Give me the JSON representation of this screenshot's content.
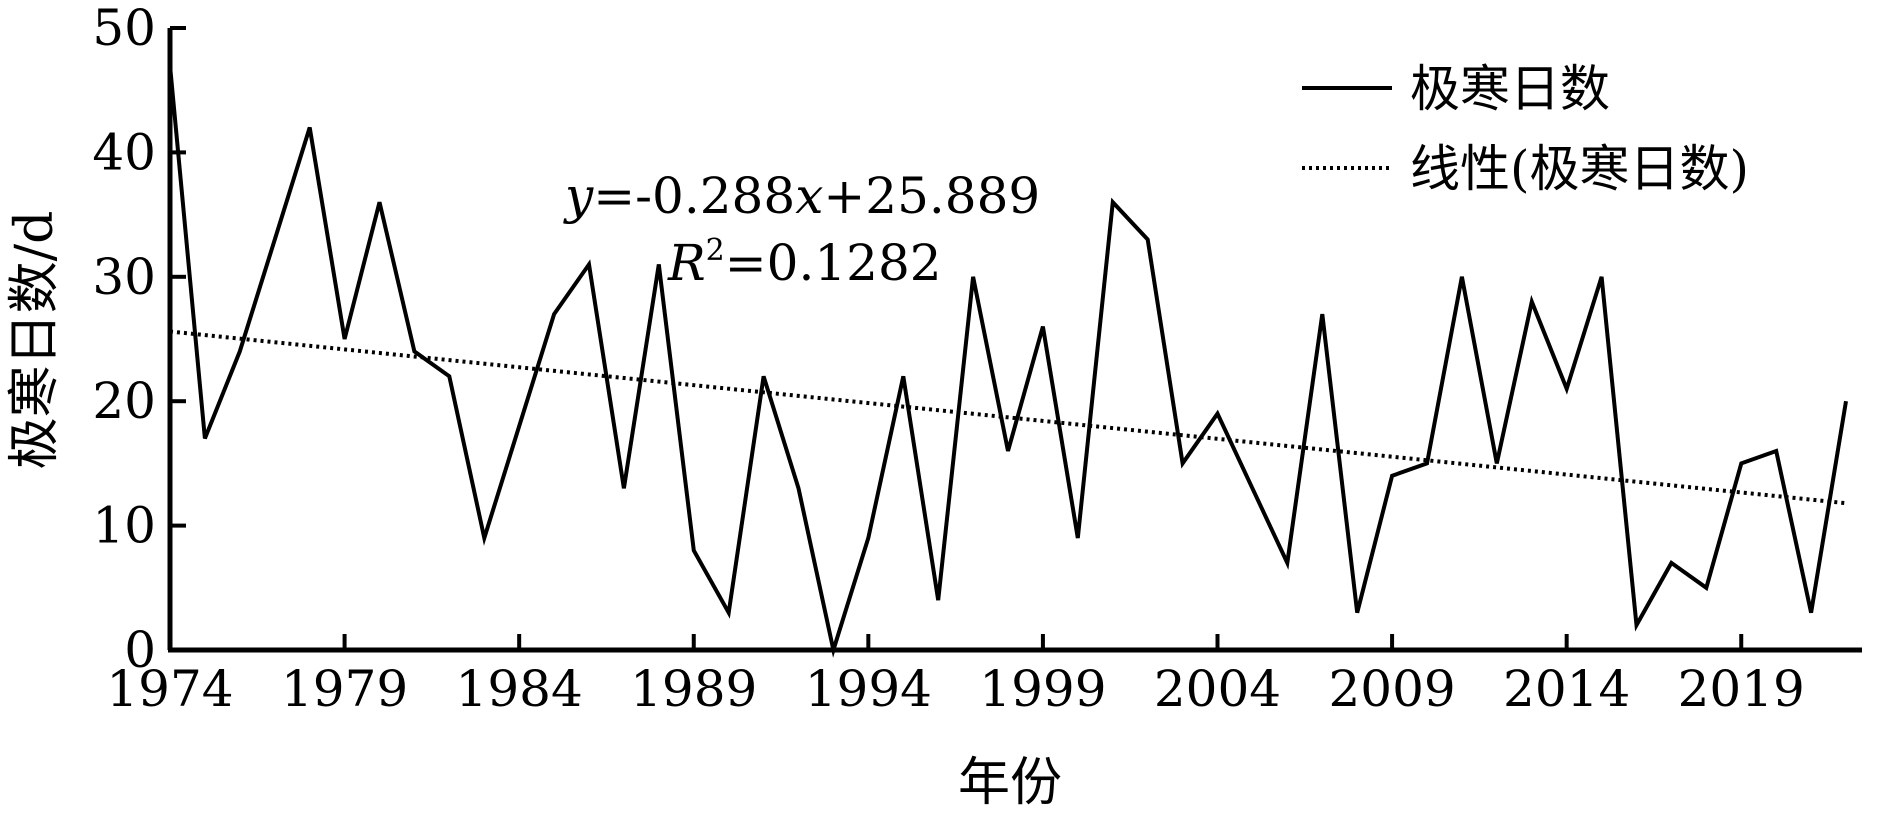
{
  "chart_data": {
    "type": "line",
    "xlabel": "年份",
    "ylabel": "极寒日数/d",
    "xlim": [
      1974,
      2022
    ],
    "ylim": [
      0,
      50
    ],
    "xticks": [
      1974,
      1979,
      1984,
      1989,
      1994,
      1999,
      2004,
      2009,
      2014,
      2019
    ],
    "yticks": [
      0,
      10,
      20,
      30,
      40,
      50
    ],
    "legend_position": "top-right",
    "series": [
      {
        "name": "极寒日数",
        "style": "solid",
        "color": "#000000",
        "x": [
          1974,
          1975,
          1976,
          1977,
          1978,
          1979,
          1980,
          1981,
          1982,
          1983,
          1984,
          1985,
          1986,
          1987,
          1988,
          1989,
          1990,
          1991,
          1992,
          1993,
          1994,
          1995,
          1996,
          1997,
          1998,
          1999,
          2000,
          2001,
          2002,
          2003,
          2004,
          2005,
          2006,
          2007,
          2008,
          2009,
          2010,
          2011,
          2012,
          2013,
          2014,
          2015,
          2016,
          2017,
          2018,
          2019,
          2020,
          2021,
          2022
        ],
        "values": [
          47,
          17,
          24,
          33,
          42,
          25,
          36,
          24,
          22,
          9,
          18,
          27,
          31,
          13,
          31,
          8,
          3,
          22,
          13,
          0,
          9,
          22,
          4,
          30,
          16,
          26,
          9,
          36,
          33,
          15,
          19,
          13,
          7,
          27,
          3,
          14,
          15,
          30,
          15,
          28,
          21,
          30,
          2,
          7,
          5,
          15,
          16,
          3,
          20
        ]
      },
      {
        "name": "线性(极寒日数)",
        "style": "dotted",
        "color": "#000000",
        "x": [
          1974,
          2022
        ],
        "values": [
          25.6,
          11.8
        ]
      }
    ],
    "annotations": {
      "equation_y": "y",
      "equation_rest": "=-0.288",
      "equation_x": "x",
      "equation_tail": "+25.889",
      "r2_label": "R",
      "r2_sup": "2",
      "r2_value": "=0.1282"
    }
  }
}
